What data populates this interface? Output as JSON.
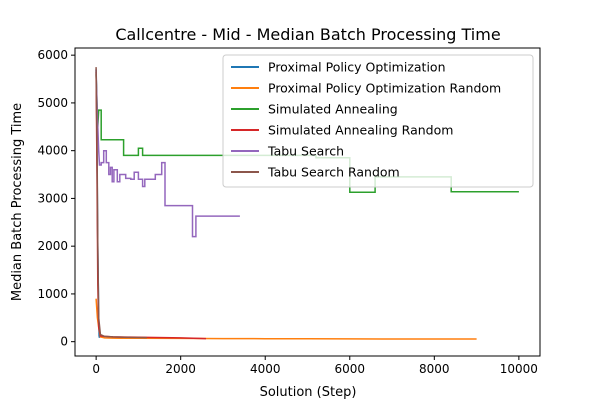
{
  "chart_data": {
    "type": "line",
    "title": "Callcentre - Mid - Median Batch Processing Time",
    "xlabel": "Solution (Step)",
    "ylabel": "Median Batch Processing Time",
    "xlim": [
      -500,
      10500
    ],
    "ylim": [
      -300,
      6150
    ],
    "xticks": [
      0,
      2000,
      4000,
      6000,
      8000,
      10000
    ],
    "xtick_labels": [
      "0",
      "2000",
      "4000",
      "6000",
      "8000",
      "10000"
    ],
    "yticks": [
      0,
      1000,
      2000,
      3000,
      4000,
      5000,
      6000
    ],
    "ytick_labels": [
      "0",
      "1000",
      "2000",
      "3000",
      "4000",
      "5000",
      "6000"
    ],
    "grid": false,
    "legend_position": "top-right",
    "series": [
      {
        "name": "Proximal Policy Optimization",
        "color": "#1f77b4",
        "x": [
          0,
          10,
          20,
          30,
          40,
          50,
          60,
          70,
          80
        ],
        "y": [
          5700,
          5000,
          3900,
          2900,
          2000,
          1200,
          450,
          120,
          80
        ]
      },
      {
        "name": "Proximal Policy Optimization Random",
        "color": "#ff7f0e",
        "x": [
          0,
          30,
          60,
          100,
          200,
          400,
          600,
          1000,
          2000,
          3000,
          4000,
          5000,
          6000,
          7000,
          8000,
          9000
        ],
        "y": [
          900,
          500,
          300,
          100,
          80,
          75,
          72,
          70,
          68,
          65,
          62,
          60,
          58,
          56,
          55,
          55
        ]
      },
      {
        "name": "Simulated Annealing",
        "color": "#2ca02c",
        "x": [
          0,
          20,
          40,
          60,
          120,
          120,
          200,
          650,
          650,
          1000,
          1000,
          1100,
          1100,
          5200,
          5200,
          6000,
          6000,
          6600,
          6600,
          8400,
          8400,
          10000
        ],
        "y": [
          5600,
          5000,
          4500,
          4850,
          4850,
          4230,
          4230,
          4230,
          3900,
          3900,
          4050,
          4050,
          3900,
          3900,
          3850,
          3850,
          3130,
          3130,
          3450,
          3450,
          3140,
          3140
        ]
      },
      {
        "name": "Simulated Annealing Random",
        "color": "#d62728",
        "x": [
          0,
          20,
          40,
          60,
          100,
          200,
          400,
          800,
          1200,
          1600,
          2000,
          2300,
          2600
        ],
        "y": [
          5650,
          3500,
          1200,
          300,
          120,
          110,
          100,
          95,
          90,
          85,
          80,
          70,
          65
        ]
      },
      {
        "name": "Tabu Search",
        "color": "#9467bd",
        "x": [
          0,
          20,
          40,
          60,
          80,
          120,
          120,
          180,
          180,
          240,
          240,
          300,
          300,
          340,
          340,
          380,
          380,
          420,
          420,
          500,
          500,
          560,
          560,
          700,
          700,
          820,
          820,
          900,
          900,
          1000,
          1000,
          1100,
          1100,
          1150,
          1150,
          1400,
          1400,
          1550,
          1550,
          1630,
          1630,
          2280,
          2280,
          2360,
          2360,
          3400
        ],
        "y": [
          5700,
          5000,
          4500,
          4000,
          3700,
          3700,
          3750,
          3750,
          4000,
          4000,
          3750,
          3750,
          3500,
          3500,
          3650,
          3650,
          3350,
          3350,
          3600,
          3600,
          3350,
          3350,
          3500,
          3500,
          3420,
          3420,
          3400,
          3400,
          3550,
          3550,
          3400,
          3400,
          3250,
          3250,
          3400,
          3400,
          3500,
          3500,
          3750,
          3750,
          2850,
          2850,
          2200,
          2200,
          2630,
          2630
        ]
      },
      {
        "name": "Tabu Search Random",
        "color": "#8c564b",
        "x": [
          0,
          20,
          40,
          60,
          100,
          200,
          400,
          800,
          1200
        ],
        "y": [
          5750,
          4200,
          2000,
          500,
          150,
          110,
          100,
          90,
          85
        ]
      }
    ]
  }
}
